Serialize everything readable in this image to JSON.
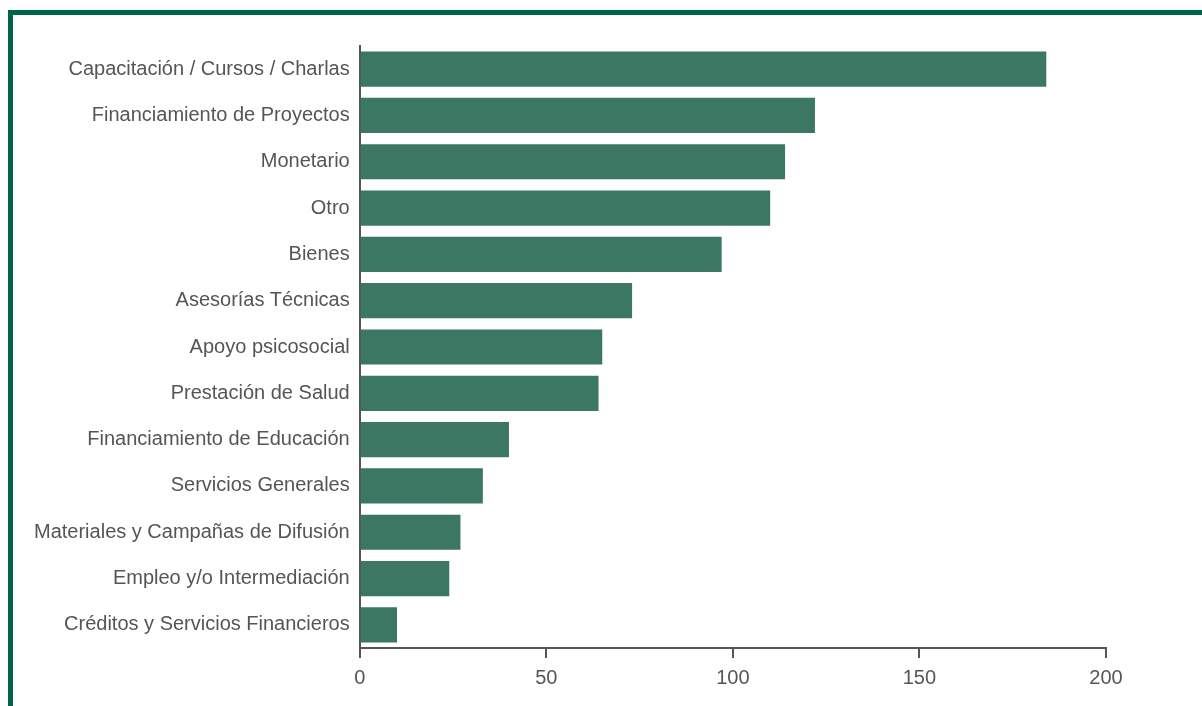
{
  "chart_data": {
    "type": "bar",
    "orientation": "horizontal",
    "categories": [
      "Capacitación / Cursos / Charlas",
      "Financiamiento de Proyectos",
      "Monetario",
      "Otro",
      "Bienes",
      "Asesorías Técnicas",
      "Apoyo psicosocial",
      "Prestación de Salud",
      "Financiamiento de Educación",
      "Servicios Generales",
      "Materiales y Campañas de Difusión",
      "Empleo y/o Intermediación",
      "Créditos y Servicios Financieros"
    ],
    "values": [
      184,
      122,
      114,
      110,
      97,
      73,
      65,
      64,
      40,
      33,
      27,
      24,
      10
    ],
    "color": "#3b7762",
    "xlim": [
      0,
      200
    ],
    "xticks": [
      0,
      50,
      100,
      150,
      200
    ],
    "grid": false,
    "legend": false
  }
}
